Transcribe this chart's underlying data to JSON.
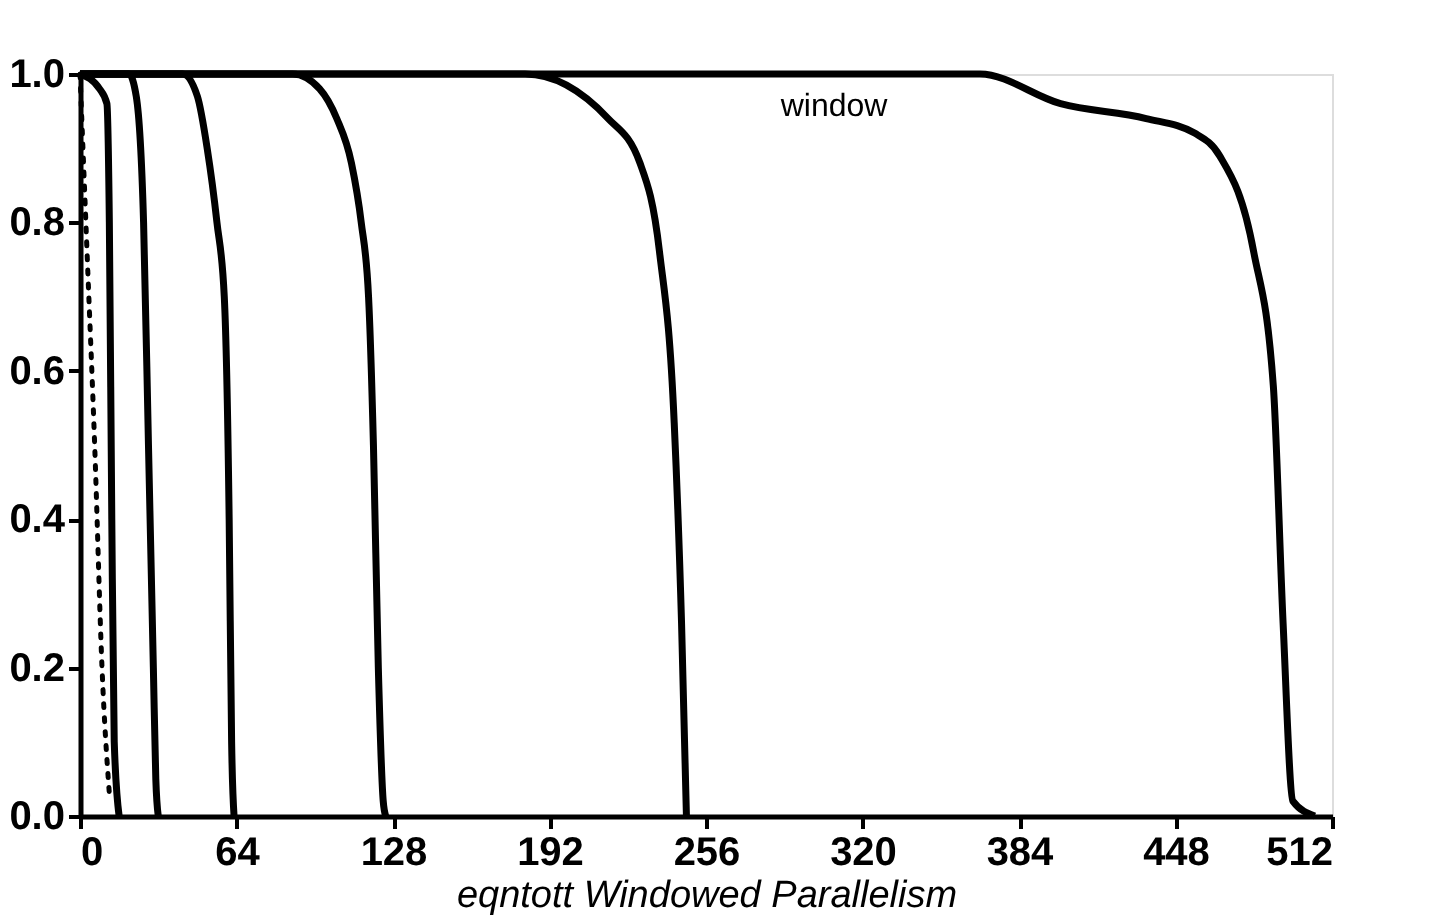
{
  "chart_data": {
    "type": "line",
    "xlabel": "eqntott Windowed Parallelism",
    "xlim": [
      0,
      512
    ],
    "xticks": [
      0,
      64,
      128,
      192,
      256,
      320,
      384,
      448,
      512
    ],
    "ylim": [
      0,
      1
    ],
    "yticks": [
      {
        "value": 0,
        "label": "0.0"
      },
      {
        "value": 0.2,
        "label": "0.2"
      },
      {
        "value": 0.4,
        "label": "0.4"
      },
      {
        "value": 0.6,
        "label": "0.6"
      },
      {
        "value": 0.8,
        "label": "0.8"
      },
      {
        "value": 1,
        "label": "1.0"
      }
    ],
    "grid": false,
    "marker": "none",
    "series": [
      {
        "color": "#000000",
        "line_style": "dotted",
        "x": [
          0,
          3,
          6,
          9,
          12
        ],
        "values": [
          1,
          0.75,
          0.5,
          0.2,
          0.03
        ]
      },
      {
        "color": "#000000",
        "line_style": "solid",
        "x": [
          0,
          8,
          11,
          12,
          13,
          14,
          16
        ],
        "values": [
          1,
          0.98,
          0.96,
          0.8,
          0.4,
          0.1,
          0
        ]
      },
      {
        "color": "#000000",
        "line_style": "solid",
        "x": [
          0,
          20,
          23,
          26,
          28,
          30,
          31,
          32
        ],
        "values": [
          1,
          1,
          0.97,
          0.8,
          0.5,
          0.2,
          0.05,
          0
        ]
      },
      {
        "color": "#000000",
        "line_style": "solid",
        "x": [
          0,
          42,
          48,
          52,
          56,
          59,
          61,
          62,
          63
        ],
        "values": [
          1,
          1,
          0.97,
          0.9,
          0.8,
          0.7,
          0.4,
          0.1,
          0
        ]
      },
      {
        "color": "#000000",
        "line_style": "solid",
        "x": [
          0,
          87,
          98,
          105,
          111,
          115,
          118,
          120,
          122,
          124,
          125
        ],
        "values": [
          1,
          1,
          0.98,
          0.94,
          0.88,
          0.8,
          0.7,
          0.5,
          0.2,
          0.02,
          0
        ]
      },
      {
        "color": "#000000",
        "line_style": "solid",
        "x": [
          0,
          182,
          216,
          229,
          237,
          243,
          246,
          248
        ],
        "values": [
          1,
          1,
          0.94,
          0.88,
          0.76,
          0.53,
          0.26,
          0
        ]
      },
      {
        "color": "#000000",
        "line_style": "solid",
        "x": [
          0,
          368,
          401,
          436,
          456,
          466,
          480,
          488,
          492,
          496,
          505
        ],
        "values": [
          1,
          1,
          0.96,
          0.94,
          0.92,
          0.89,
          0.76,
          0.58,
          0.26,
          0.02,
          0
        ]
      }
    ],
    "annotations": [
      "window"
    ]
  }
}
